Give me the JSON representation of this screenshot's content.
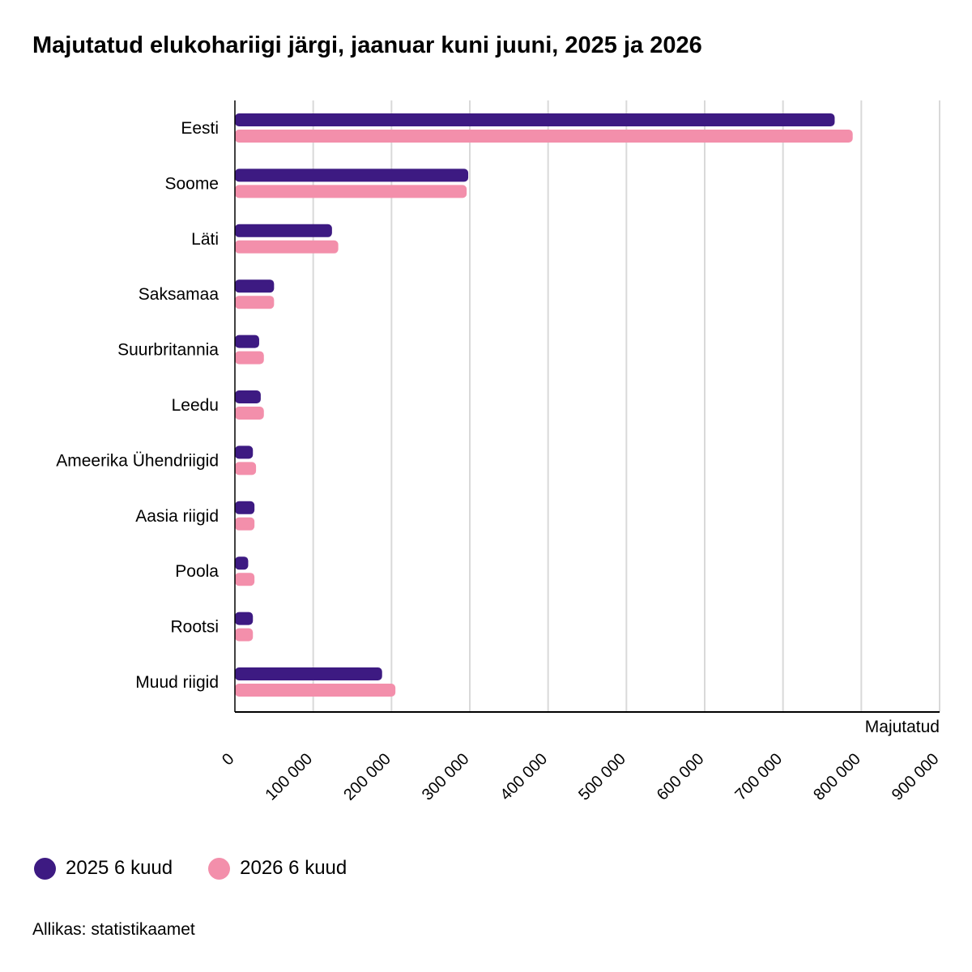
{
  "chart_data": {
    "type": "bar",
    "orientation": "horizontal",
    "title": "Majutatud elukohariigi järgi, jaanuar kuni juuni, 2025 ja 2026",
    "xlabel": "Majutatud",
    "categories": [
      "Eesti",
      "Soome",
      "Läti",
      "Saksamaa",
      "Suurbritannia",
      "Leedu",
      "Ameerika Ühendriigid",
      "Aasia riigid",
      "Poola",
      "Rootsi",
      "Muud riigid"
    ],
    "series": [
      {
        "name": "2025 6 kuud",
        "color": "#3d1a82",
        "values": [
          766000,
          298000,
          124000,
          50000,
          31000,
          33000,
          23000,
          25000,
          17000,
          23000,
          188000
        ]
      },
      {
        "name": "2026 6 kuud",
        "color": "#f38fab",
        "values": [
          789000,
          296000,
          132000,
          50000,
          37000,
          37000,
          27000,
          25000,
          25000,
          23000,
          205000
        ]
      }
    ],
    "xlim": [
      0,
      900000
    ],
    "xticks": [
      "0",
      "100 000",
      "200 000",
      "300 000",
      "400 000",
      "500 000",
      "600 000",
      "700 000",
      "800 000",
      "900 000"
    ],
    "grid": true,
    "legend_position": "bottom-left"
  },
  "source": "Allikas: statistikaamet"
}
